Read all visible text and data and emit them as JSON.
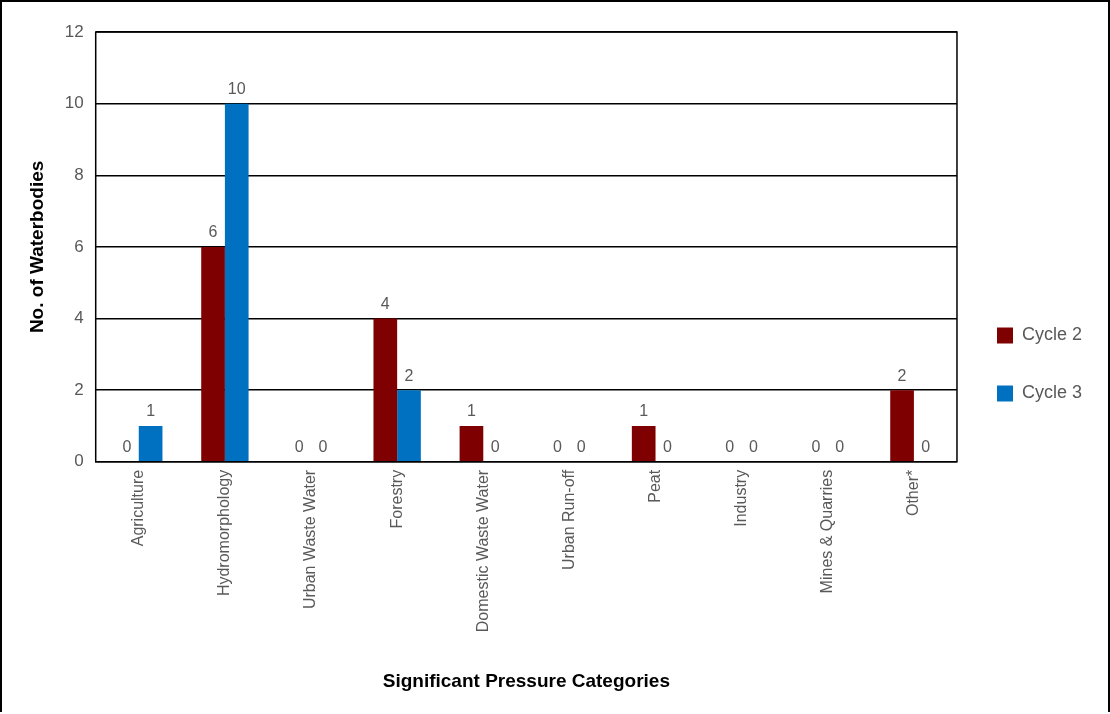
{
  "chart_data": {
    "type": "bar",
    "xlabel": "Significant Pressure Categories",
    "ylabel": "No. of Waterbodies",
    "categories": [
      "Agriculture",
      "Hydromorphology",
      "Urban Waste Water",
      "Forestry",
      "Domestic Waste Water",
      "Urban Run-off",
      "Peat",
      "Industry",
      "Mines & Quarries",
      "Other*"
    ],
    "series": [
      {
        "name": "Cycle 2",
        "color": "#7f0000",
        "values": [
          0,
          6,
          0,
          4,
          1,
          0,
          1,
          0,
          0,
          2
        ]
      },
      {
        "name": "Cycle 3",
        "color": "#0070c0",
        "values": [
          1,
          10,
          0,
          2,
          0,
          0,
          0,
          0,
          0,
          0
        ]
      }
    ],
    "ylim": [
      0,
      12
    ],
    "yticks": [
      0,
      2,
      4,
      6,
      8,
      10,
      12
    ],
    "grid": "y",
    "legend": "right",
    "data_labels": true
  }
}
